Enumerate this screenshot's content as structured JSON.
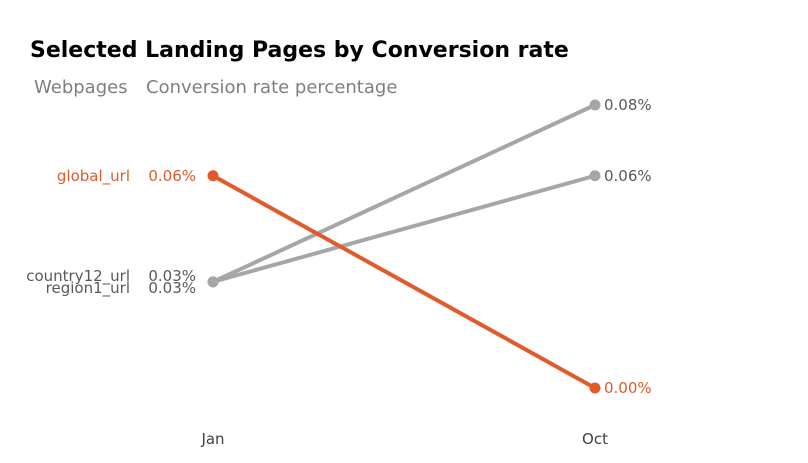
{
  "chart_data": {
    "type": "line",
    "title": "Selected Landing Pages by Conversion rate",
    "subtitle_left": "Webpages",
    "subtitle_right": "Conversion rate percentage",
    "categories": [
      "Jan",
      "Oct"
    ],
    "ylim": [
      0,
      0.08
    ],
    "grid": false,
    "unit": "%",
    "series": [
      {
        "name": "global_url",
        "values": [
          0.06,
          0.0
        ],
        "labels": [
          "0.06%",
          "0.00%"
        ],
        "color": "#e05a2b"
      },
      {
        "name": "country12_url",
        "values": [
          0.03,
          0.06
        ],
        "labels": [
          "0.03%",
          "0.06%"
        ],
        "color": "#a6a6a6"
      },
      {
        "name": "region1_url",
        "values": [
          0.03,
          0.08
        ],
        "labels": [
          "0.03%",
          "0.08%"
        ],
        "color": "#a6a6a6"
      }
    ]
  }
}
